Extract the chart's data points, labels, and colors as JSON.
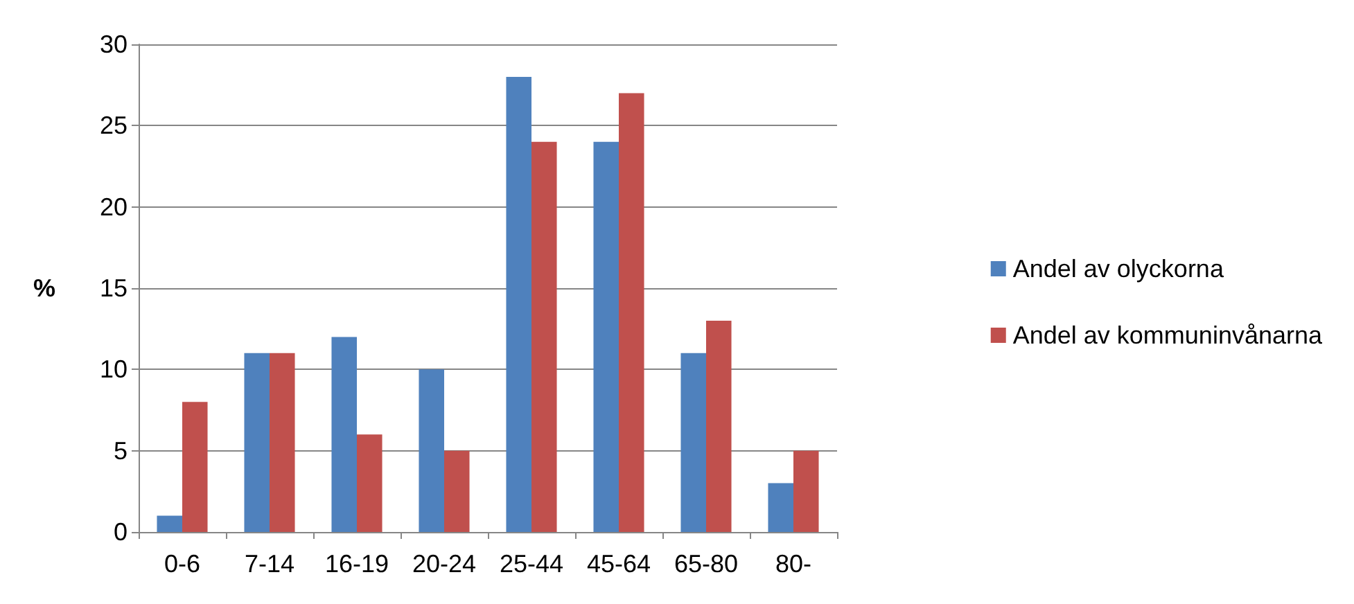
{
  "chart_data": {
    "type": "bar",
    "ylabel": "%",
    "categories": [
      "0-6",
      "7-14",
      "16-19",
      "20-24",
      "25-44",
      "45-64",
      "65-80",
      "80-"
    ],
    "series": [
      {
        "name": "Andel av olyckorna",
        "color": "#4f81bd",
        "values": [
          1,
          11,
          12,
          10,
          28,
          24,
          11,
          3
        ]
      },
      {
        "name": "Andel av kommuninvånarna",
        "color": "#c0504d",
        "values": [
          8,
          11,
          6,
          5,
          24,
          27,
          13,
          5
        ]
      }
    ],
    "ylim": [
      0,
      30
    ],
    "yticks": [
      0,
      5,
      10,
      15,
      20,
      25,
      30
    ],
    "grid": "y",
    "legend": "right"
  }
}
